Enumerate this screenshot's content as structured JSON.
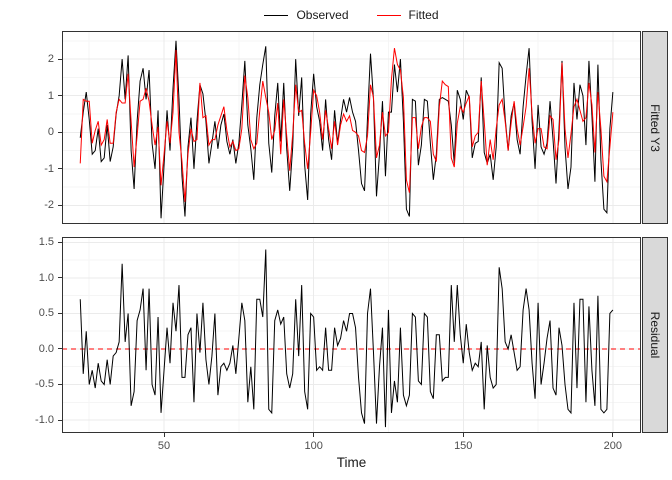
{
  "legend": {
    "items": [
      {
        "label": "Observed",
        "color": "#000000"
      },
      {
        "label": "Fitted",
        "color": "#ff0000"
      }
    ]
  },
  "axes": {
    "x": {
      "label": "Time",
      "ticks": [
        50,
        100,
        150,
        200
      ],
      "minor": [
        25,
        75,
        125,
        175
      ],
      "domain": [
        15.9,
        209.4
      ]
    },
    "y_top": {
      "ticks": [
        2,
        1,
        0,
        -1,
        -2
      ],
      "tick_labels": [
        "2",
        "1",
        "0",
        "-1",
        "-2"
      ],
      "minor": [
        2.5,
        1.5,
        0.5,
        -0.5,
        -1.5,
        -2.5
      ],
      "domain": [
        -2.506,
        2.768
      ]
    },
    "y_bottom": {
      "ticks": [
        1.5,
        1.0,
        0.5,
        0.0,
        -0.5,
        -1.0
      ],
      "tick_labels": [
        "1.5",
        "1.0",
        "0.5",
        "0.0",
        "-0.5",
        "-1.0"
      ],
      "minor": [
        1.25,
        0.75,
        0.25,
        -0.25,
        -0.75
      ],
      "domain": [
        -1.183,
        1.577
      ]
    }
  },
  "theme": {
    "background": "#ffffff",
    "grid_major": "#ebebeb",
    "grid_minor": "#f5f5f5",
    "panel_border": "#333333",
    "strip_fill": "#d9d9d9",
    "tick_color": "#333333",
    "tick_label_color": "#4d4d4d",
    "series_observed": "#000000",
    "series_fitted": "#ff0000",
    "reference_line": "#ff0000"
  },
  "chart_data": [
    {
      "type": "line",
      "panel": "Fitted Y3",
      "xlabel": "Time",
      "x_start": 22,
      "x_step": 1,
      "x_end": 200,
      "ylim": [
        -2.51,
        2.77
      ],
      "yticks": [
        -2,
        -1,
        0,
        1,
        2
      ],
      "grid": true,
      "legend_position": "top",
      "series": [
        {
          "name": "Observed",
          "color": "#000000",
          "values": [
            -0.15,
            0.55,
            1.1,
            0.35,
            -0.6,
            -0.5,
            0.1,
            -0.8,
            -0.7,
            0.2,
            -0.8,
            -0.4,
            0.5,
            1.0,
            2.0,
            0.9,
            2.1,
            -0.5,
            -1.55,
            0.3,
            1.4,
            1.75,
            0.9,
            1.7,
            -0.3,
            -1.0,
            0.6,
            -2.35,
            -0.9,
            0.6,
            -0.5,
            1.2,
            2.5,
            0.9,
            -1.2,
            -2.3,
            -0.4,
            0.4,
            -1.0,
            0.3,
            1.3,
            1.05,
            0.3,
            -0.85,
            -0.3,
            0.3,
            -0.45,
            0.2,
            0.5,
            -0.25,
            -0.6,
            -0.2,
            -0.85,
            -0.3,
            0.75,
            1.95,
            0.2,
            -0.45,
            -1.3,
            0.4,
            1.3,
            1.85,
            2.35,
            -0.3,
            -1.1,
            0.45,
            1.35,
            -0.25,
            1.35,
            -0.45,
            -1.6,
            -0.4,
            2.0,
            0.45,
            1.5,
            -0.9,
            -1.85,
            0.5,
            1.6,
            0.7,
            0.3,
            -0.5,
            0.9,
            -0.2,
            -0.75,
            0.6,
            -0.3,
            0.35,
            0.9,
            0.55,
            0.95,
            0.55,
            0.3,
            -0.5,
            -1.4,
            -1.6,
            0.4,
            2.15,
            0.9,
            -1.75,
            -0.6,
            0.85,
            -1.2,
            0.55,
            0.55,
            1.85,
            1.1,
            2.0,
            0.3,
            -2.1,
            -2.3,
            0.9,
            0.85,
            -0.9,
            -0.35,
            0.9,
            0.85,
            -0.3,
            -1.3,
            -0.6,
            0.9,
            0.95,
            0.9,
            0.85,
            0.2,
            -0.85,
            1.15,
            0.9,
            0.35,
            1.15,
            0.95,
            -0.7,
            -0.3,
            -0.25,
            1.5,
            -0.55,
            -0.85,
            -0.6,
            -1.3,
            -0.4,
            1.9,
            1.75,
            0.4,
            -0.5,
            0.45,
            0.8,
            -0.2,
            -0.6,
            0.7,
            1.55,
            2.3,
            0.3,
            -1.0,
            0.75,
            -0.4,
            -0.6,
            -0.3,
            0.85,
            -0.2,
            -1.4,
            0.1,
            1.95,
            -0.4,
            -1.55,
            -0.95,
            1.35,
            0.35,
            1.3,
            1.0,
            -0.35,
            1.95,
            0.45,
            -1.35,
            1.85,
            -0.75,
            -2.1,
            -2.2,
            0.1,
            1.1
          ]
        },
        {
          "name": "Fitted",
          "color": "#ff0000",
          "values": [
            -0.85,
            0.9,
            0.85,
            0.85,
            -0.3,
            0.05,
            0.3,
            -0.35,
            -0.2,
            0.35,
            -0.3,
            -0.3,
            0.55,
            0.9,
            0.8,
            0.8,
            1.6,
            0.3,
            -0.95,
            -0.1,
            0.85,
            0.9,
            1.2,
            0.85,
            0.2,
            -0.35,
            0.15,
            -1.45,
            -0.6,
            0.3,
            -0.3,
            0.55,
            2.25,
            0.0,
            -0.8,
            -1.9,
            -0.6,
            0.1,
            -0.25,
            -0.2,
            1.35,
            0.4,
            0.45,
            -0.35,
            -0.2,
            -0.2,
            0.2,
            0.45,
            0.7,
            0.05,
            -0.4,
            -0.25,
            -0.5,
            -0.45,
            0.1,
            1.55,
            0.95,
            -0.2,
            -0.45,
            -0.3,
            0.6,
            1.4,
            0.95,
            0.55,
            -0.2,
            0.05,
            0.8,
            -0.6,
            0.9,
            -0.1,
            -1.05,
            -0.05,
            1.3,
            0.55,
            0.6,
            -0.3,
            -1.0,
            0.0,
            1.15,
            1.0,
            0.55,
            -0.2,
            0.6,
            0.1,
            -0.45,
            0.3,
            -0.35,
            0.2,
            0.5,
            0.3,
            0.45,
            0.05,
            0.0,
            -0.1,
            -0.5,
            -0.55,
            -0.1,
            1.3,
            0.95,
            -0.7,
            -0.35,
            0.55,
            -0.1,
            0.0,
            1.45,
            2.3,
            1.85,
            1.7,
            0.95,
            -1.3,
            -1.65,
            0.4,
            0.4,
            -0.45,
            0.15,
            0.4,
            0.4,
            0.3,
            -0.6,
            -0.8,
            0.7,
            1.4,
            1.3,
            1.25,
            -0.7,
            -0.95,
            0.25,
            0.7,
            0.55,
            0.8,
            1.0,
            -0.4,
            -0.1,
            0.0,
            1.4,
            0.3,
            -0.9,
            -0.2,
            -0.75,
            0.1,
            0.75,
            0.9,
            0.3,
            -0.5,
            0.25,
            0.85,
            0.1,
            -0.35,
            0.15,
            0.7,
            1.75,
            0.5,
            -0.3,
            0.1,
            0.1,
            -0.4,
            -0.45,
            0.45,
            0.35,
            -0.75,
            -0.2,
            1.9,
            0.1,
            -0.7,
            -0.05,
            0.7,
            0.9,
            0.6,
            0.3,
            0.4,
            1.35,
            0.75,
            -0.55,
            1.1,
            0.1,
            -1.2,
            -1.35,
            -0.4,
            0.55
          ]
        }
      ]
    },
    {
      "type": "line",
      "panel": "Residual",
      "xlabel": "Time",
      "x_start": 22,
      "x_step": 1,
      "x_end": 200,
      "ylim": [
        -1.18,
        1.58
      ],
      "yticks": [
        -1.0,
        -0.5,
        0.0,
        0.5,
        1.0,
        1.5
      ],
      "grid": true,
      "reference_line": {
        "y": 0,
        "color": "#ff0000",
        "style": "dashed"
      },
      "series": [
        {
          "name": "Residual",
          "color": "#000000",
          "values": [
            0.7,
            -0.35,
            0.25,
            -0.5,
            -0.3,
            -0.55,
            -0.2,
            -0.45,
            -0.5,
            -0.15,
            -0.5,
            -0.1,
            -0.05,
            0.1,
            1.2,
            0.1,
            0.5,
            -0.8,
            -0.6,
            0.4,
            0.55,
            0.85,
            -0.3,
            0.85,
            -0.5,
            -0.65,
            0.45,
            -0.9,
            -0.3,
            0.3,
            -0.2,
            0.65,
            0.25,
            0.9,
            -0.4,
            -0.4,
            0.2,
            0.3,
            -0.75,
            0.5,
            -0.05,
            0.65,
            -0.15,
            -0.5,
            -0.1,
            0.5,
            -0.65,
            -0.25,
            -0.2,
            -0.3,
            -0.2,
            0.05,
            -0.35,
            0.15,
            0.65,
            0.4,
            -0.75,
            -0.25,
            -0.85,
            0.7,
            0.7,
            0.45,
            1.4,
            -0.85,
            -0.9,
            0.4,
            0.55,
            0.35,
            0.45,
            -0.35,
            -0.55,
            -0.35,
            0.7,
            -0.1,
            0.9,
            -0.6,
            -0.85,
            0.5,
            0.45,
            -0.3,
            -0.25,
            -0.3,
            0.3,
            -0.3,
            -0.3,
            0.3,
            0.05,
            0.15,
            0.4,
            0.25,
            0.5,
            0.5,
            0.3,
            -0.4,
            -0.9,
            -1.05,
            0.5,
            0.85,
            -0.05,
            -1.05,
            -0.25,
            0.3,
            -1.1,
            0.55,
            -0.9,
            -0.45,
            -0.75,
            0.3,
            -0.65,
            -0.8,
            -0.65,
            0.5,
            0.45,
            -0.45,
            -0.5,
            0.5,
            0.45,
            -0.6,
            -0.7,
            0.2,
            0.2,
            -0.45,
            -0.4,
            -0.4,
            0.9,
            0.1,
            0.9,
            0.2,
            -0.2,
            0.35,
            -0.05,
            -0.3,
            -0.2,
            -0.25,
            0.1,
            -0.85,
            0.05,
            -0.4,
            -0.55,
            -0.5,
            1.15,
            0.85,
            0.1,
            0.0,
            0.2,
            -0.05,
            -0.3,
            -0.25,
            0.55,
            0.85,
            0.55,
            -0.2,
            -0.7,
            0.65,
            -0.5,
            -0.2,
            0.15,
            0.4,
            -0.55,
            -0.65,
            0.3,
            0.05,
            -0.5,
            -0.85,
            -0.9,
            0.65,
            -0.55,
            0.7,
            0.7,
            -0.75,
            0.6,
            -0.3,
            -0.8,
            0.75,
            -0.85,
            -0.9,
            -0.85,
            0.5,
            0.55
          ]
        }
      ]
    }
  ]
}
